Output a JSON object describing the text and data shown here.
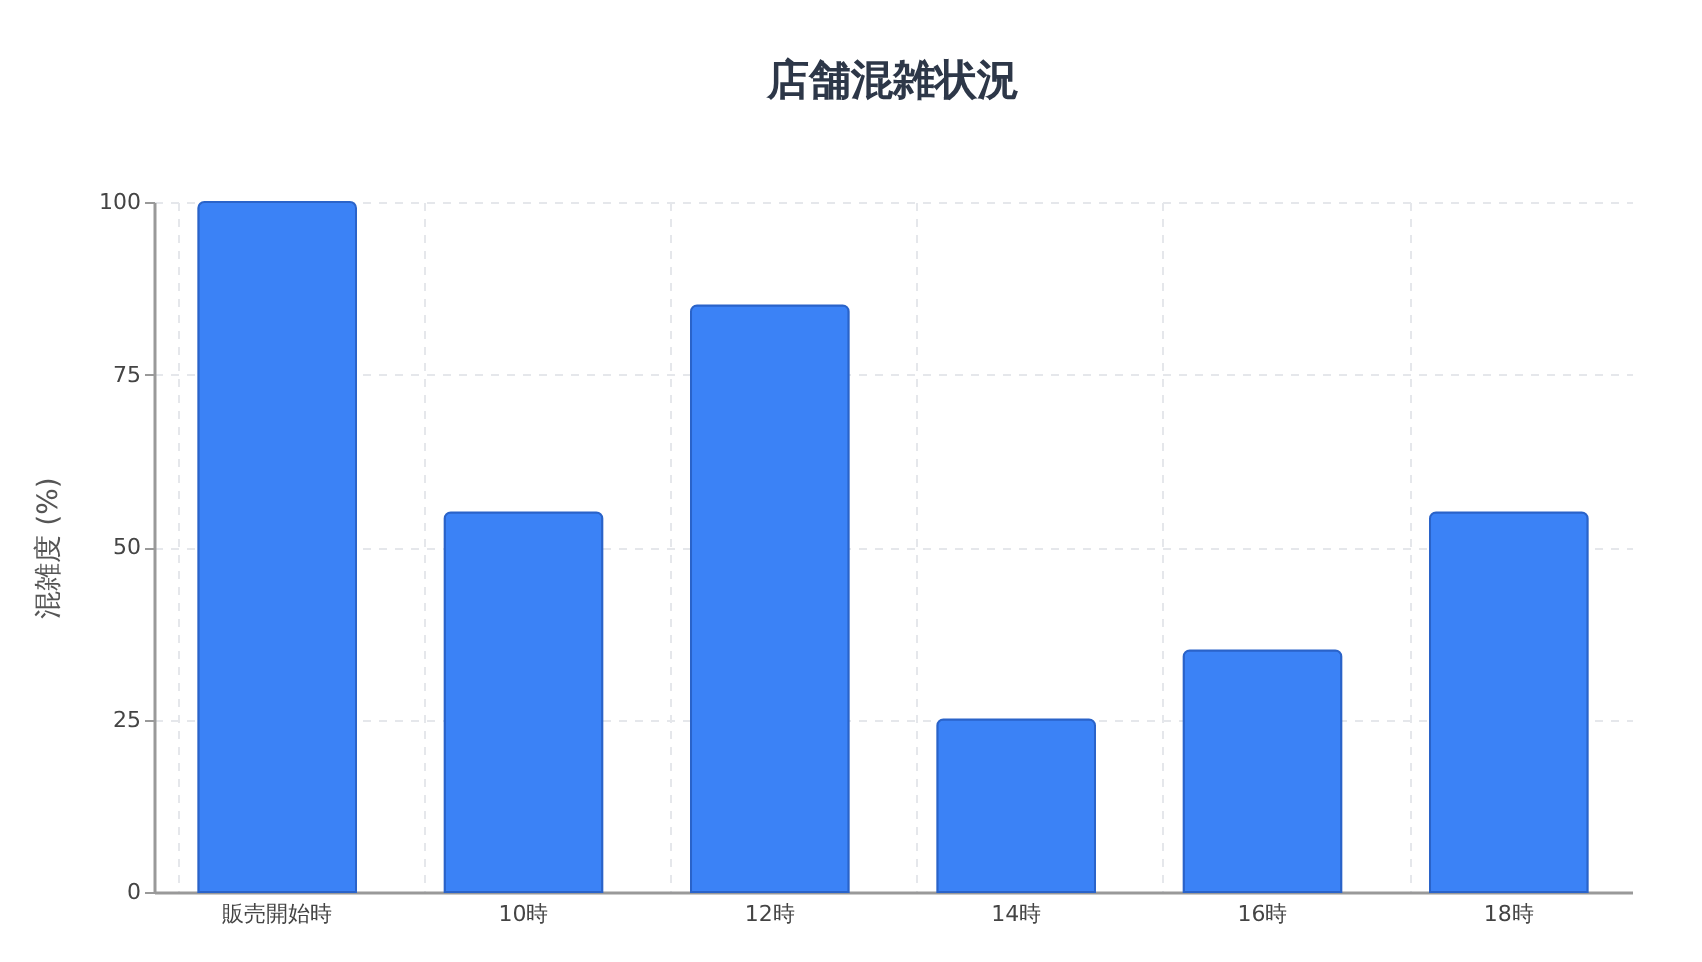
{
  "chart_data": {
    "type": "bar",
    "title": "店舗混雑状況",
    "ylabel": "混雑度 (%)",
    "categories": [
      "販売開始時",
      "10時",
      "12時",
      "14時",
      "16時",
      "18時"
    ],
    "values": [
      100,
      55,
      85,
      25,
      35,
      55
    ],
    "color": "#3b82f6",
    "ylim": [
      0,
      100
    ],
    "yticks": [
      0,
      25,
      50,
      75,
      100
    ],
    "grid": true
  }
}
